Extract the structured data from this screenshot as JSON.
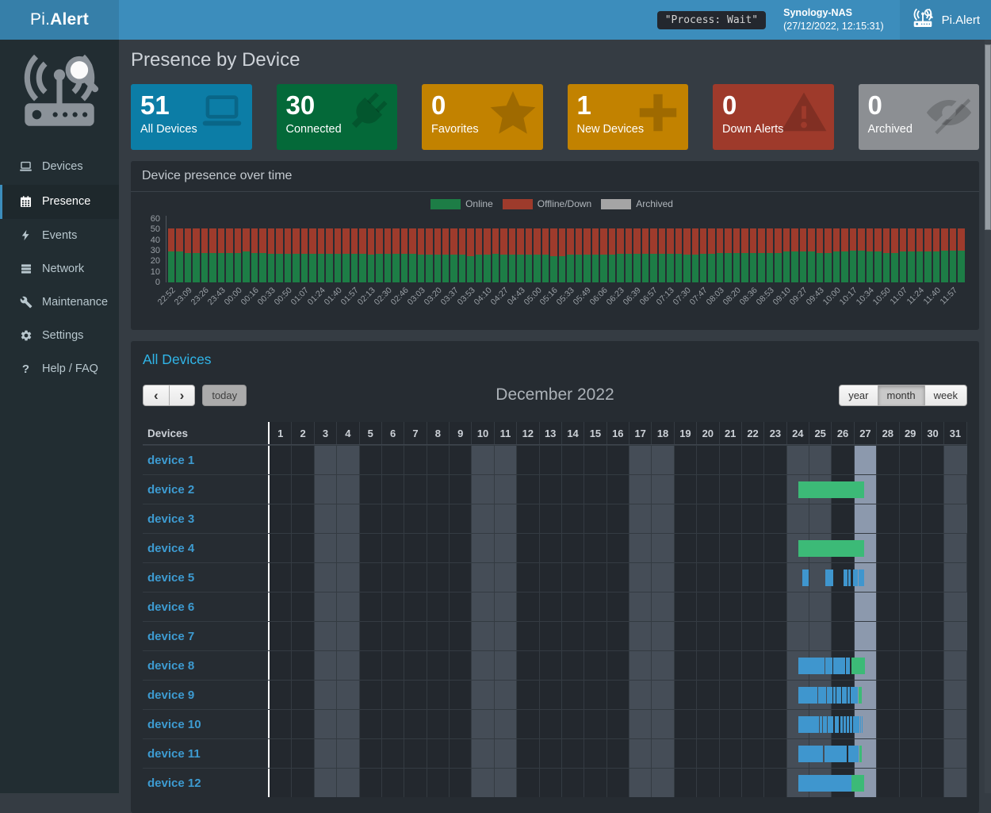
{
  "navbar": {
    "brand_pi": "Pi.",
    "brand_alert": "Alert",
    "process_status": "\"Process: Wait\"",
    "host_name": "Synology-NAS",
    "host_time": "(27/12/2022, 12:15:31)",
    "app_name": "Pi.Alert"
  },
  "sidebar": {
    "items": [
      {
        "label": "Devices",
        "icon": "laptop",
        "active": false
      },
      {
        "label": "Presence",
        "icon": "calendar",
        "active": true
      },
      {
        "label": "Events",
        "icon": "bolt",
        "active": false
      },
      {
        "label": "Network",
        "icon": "rows",
        "active": false
      },
      {
        "label": "Maintenance",
        "icon": "wrench",
        "active": false
      },
      {
        "label": "Settings",
        "icon": "gear",
        "active": false
      },
      {
        "label": "Help / FAQ",
        "icon": "question",
        "active": false
      }
    ]
  },
  "page": {
    "title": "Presence by Device"
  },
  "cards": [
    {
      "value": "51",
      "label": "All Devices",
      "icon": "laptop",
      "color": "#0c7da6"
    },
    {
      "value": "30",
      "label": "Connected",
      "icon": "plug",
      "color": "#046939"
    },
    {
      "value": "0",
      "label": "Favorites",
      "icon": "star",
      "color": "#c28200"
    },
    {
      "value": "1",
      "label": "New Devices",
      "icon": "plus",
      "color": "#c28200"
    },
    {
      "value": "0",
      "label": "Down Alerts",
      "icon": "warning",
      "color": "#9e3a2b"
    },
    {
      "value": "0",
      "label": "Archived",
      "icon": "eye-slash",
      "color": "#8c8f93"
    }
  ],
  "chart_data": {
    "type": "bar",
    "stacked": true,
    "title": "Device presence over time",
    "legend": [
      {
        "label": "Online",
        "color": "#1d7d46"
      },
      {
        "label": "Offline/Down",
        "color": "#9e3b2c"
      },
      {
        "label": "Archived",
        "color": "#a5a5a5"
      }
    ],
    "ylim": [
      0,
      60
    ],
    "y_ticks": [
      60,
      50,
      40,
      30,
      20,
      10,
      0
    ],
    "total_devices": 51,
    "x_labels": [
      "22:52",
      "23:09",
      "23:26",
      "23:43",
      "00:00",
      "00:16",
      "00:33",
      "00:50",
      "01:07",
      "01:24",
      "01:40",
      "01:57",
      "02:13",
      "02:30",
      "02:46",
      "03:03",
      "03:20",
      "03:37",
      "03:53",
      "04:10",
      "04:27",
      "04:43",
      "05:00",
      "05:16",
      "05:33",
      "05:49",
      "06:06",
      "06:23",
      "06:39",
      "06:57",
      "07:13",
      "07:30",
      "07:47",
      "08:03",
      "08:20",
      "08:36",
      "08:53",
      "09:10",
      "09:27",
      "09:43",
      "10:00",
      "10:17",
      "10:34",
      "10:50",
      "11:07",
      "11:24",
      "11:40",
      "11:57"
    ],
    "series": [
      {
        "name": "Online",
        "values": [
          29,
          29,
          28,
          28,
          28,
          28,
          28,
          28,
          28,
          29,
          28,
          28,
          27,
          27,
          27,
          27,
          27,
          27,
          27,
          27,
          27,
          27,
          27,
          27,
          26,
          27,
          27,
          27,
          27,
          27,
          26,
          26,
          26,
          26,
          26,
          26,
          25,
          26,
          26,
          27,
          26,
          26,
          26,
          26,
          26,
          26,
          25,
          25,
          26,
          26,
          26,
          26,
          26,
          26,
          27,
          27,
          27,
          27,
          27,
          27,
          27,
          27,
          26,
          26,
          27,
          27,
          28,
          28,
          28,
          28,
          28,
          28,
          28,
          28,
          29,
          29,
          29,
          29,
          28,
          28,
          29,
          29,
          30,
          30,
          29,
          29,
          28,
          28,
          29,
          29,
          29,
          29,
          29,
          30,
          30,
          30
        ]
      },
      {
        "name": "Offline/Down",
        "values": [
          22,
          22,
          23,
          23,
          23,
          23,
          23,
          23,
          23,
          22,
          23,
          23,
          24,
          24,
          24,
          24,
          24,
          24,
          24,
          24,
          24,
          24,
          24,
          24,
          25,
          24,
          24,
          24,
          24,
          24,
          25,
          25,
          25,
          25,
          25,
          25,
          26,
          25,
          25,
          24,
          25,
          25,
          25,
          25,
          25,
          25,
          26,
          26,
          25,
          25,
          25,
          25,
          25,
          25,
          24,
          24,
          24,
          24,
          24,
          24,
          24,
          24,
          25,
          25,
          24,
          24,
          23,
          23,
          23,
          23,
          23,
          23,
          23,
          23,
          22,
          22,
          22,
          22,
          23,
          23,
          22,
          22,
          21,
          21,
          22,
          22,
          23,
          23,
          22,
          22,
          22,
          22,
          22,
          21,
          21,
          21
        ]
      },
      {
        "name": "Archived",
        "values": [
          0,
          0,
          0,
          0,
          0,
          0,
          0,
          0,
          0,
          0,
          0,
          0,
          0,
          0,
          0,
          0,
          0,
          0,
          0,
          0,
          0,
          0,
          0,
          0,
          0,
          0,
          0,
          0,
          0,
          0,
          0,
          0,
          0,
          0,
          0,
          0,
          0,
          0,
          0,
          0,
          0,
          0,
          0,
          0,
          0,
          0,
          0,
          0,
          0,
          0,
          0,
          0,
          0,
          0,
          0,
          0,
          0,
          0,
          0,
          0,
          0,
          0,
          0,
          0,
          0,
          0,
          0,
          0,
          0,
          0,
          0,
          0,
          0,
          0,
          0,
          0,
          0,
          0,
          0,
          0,
          0,
          0,
          0,
          0,
          0,
          0,
          0,
          0,
          0,
          0,
          0,
          0,
          0,
          0,
          0,
          0
        ]
      }
    ]
  },
  "presence_panel": {
    "title": "All Devices",
    "toolbar": {
      "prev": "‹",
      "next": "›",
      "today_label": "today",
      "title": "December 2022",
      "views": [
        {
          "label": "year",
          "active": false
        },
        {
          "label": "month",
          "active": true
        },
        {
          "label": "week",
          "active": false
        }
      ]
    },
    "segment_colors": {
      "g": "#3cba77",
      "b": "#3f96ce"
    },
    "table": {
      "device_col_header": "Devices",
      "days": 31,
      "weekend_days": [
        3,
        4,
        10,
        11,
        17,
        18,
        24,
        25,
        31
      ],
      "today_day": 27,
      "devices": [
        {
          "name": "device 1",
          "segments": []
        },
        {
          "name": "device 2",
          "segments": [
            [
              24.5,
              27.43,
              "g"
            ]
          ]
        },
        {
          "name": "device 3",
          "segments": []
        },
        {
          "name": "device 4",
          "segments": [
            [
              24.5,
              27.43,
              "g"
            ]
          ]
        },
        {
          "name": "device 5",
          "segments": [
            [
              24.67,
              24.95,
              "b"
            ],
            [
              25.7,
              26.05,
              "b"
            ],
            [
              26.5,
              26.67,
              "b"
            ],
            [
              26.73,
              26.83,
              "b"
            ],
            [
              26.93,
              27.02,
              "b"
            ],
            [
              27.05,
              27.14,
              "b"
            ],
            [
              27.17,
              27.3,
              "b"
            ],
            [
              27.32,
              27.43,
              "b"
            ]
          ]
        },
        {
          "name": "device 6",
          "segments": []
        },
        {
          "name": "device 7",
          "segments": []
        },
        {
          "name": "device 8",
          "segments": [
            [
              24.5,
              25.65,
              "b"
            ],
            [
              25.7,
              26.0,
              "b"
            ],
            [
              26.03,
              26.28,
              "b"
            ],
            [
              26.31,
              26.59,
              "b"
            ],
            [
              26.62,
              26.79,
              "b"
            ],
            [
              26.87,
              27.44,
              "g"
            ]
          ]
        },
        {
          "name": "device 9",
          "segments": [
            [
              24.5,
              25.33,
              "b"
            ],
            [
              25.38,
              25.72,
              "b"
            ],
            [
              25.76,
              26.0,
              "b"
            ],
            [
              26.05,
              26.15,
              "b"
            ],
            [
              26.18,
              26.28,
              "b"
            ],
            [
              26.31,
              26.41,
              "b"
            ],
            [
              26.45,
              26.63,
              "b"
            ],
            [
              26.67,
              26.78,
              "b"
            ],
            [
              26.81,
              27.15,
              "b"
            ],
            [
              27.18,
              27.3,
              "g"
            ]
          ]
        },
        {
          "name": "device 10",
          "segments": [
            [
              24.5,
              25.4,
              "b"
            ],
            [
              25.45,
              25.56,
              "b"
            ],
            [
              25.6,
              25.76,
              "b"
            ],
            [
              25.8,
              26.05,
              "b"
            ],
            [
              26.1,
              26.3,
              "b"
            ],
            [
              26.35,
              26.46,
              "b"
            ],
            [
              26.5,
              26.6,
              "b"
            ],
            [
              26.64,
              26.74,
              "b"
            ],
            [
              26.77,
              26.9,
              "b"
            ],
            [
              26.94,
              27.02,
              "b"
            ],
            [
              27.05,
              27.2,
              "b"
            ],
            [
              27.23,
              27.28,
              "b"
            ],
            [
              27.31,
              27.36,
              "b"
            ]
          ]
        },
        {
          "name": "device 11",
          "segments": [
            [
              24.5,
              25.58,
              "b"
            ],
            [
              25.65,
              26.63,
              "b"
            ],
            [
              26.7,
              27.18,
              "b"
            ],
            [
              27.2,
              27.33,
              "g"
            ]
          ]
        },
        {
          "name": "device 12",
          "segments": [
            [
              24.5,
              26.85,
              "b"
            ],
            [
              26.87,
              27.43,
              "g"
            ]
          ]
        }
      ]
    }
  }
}
